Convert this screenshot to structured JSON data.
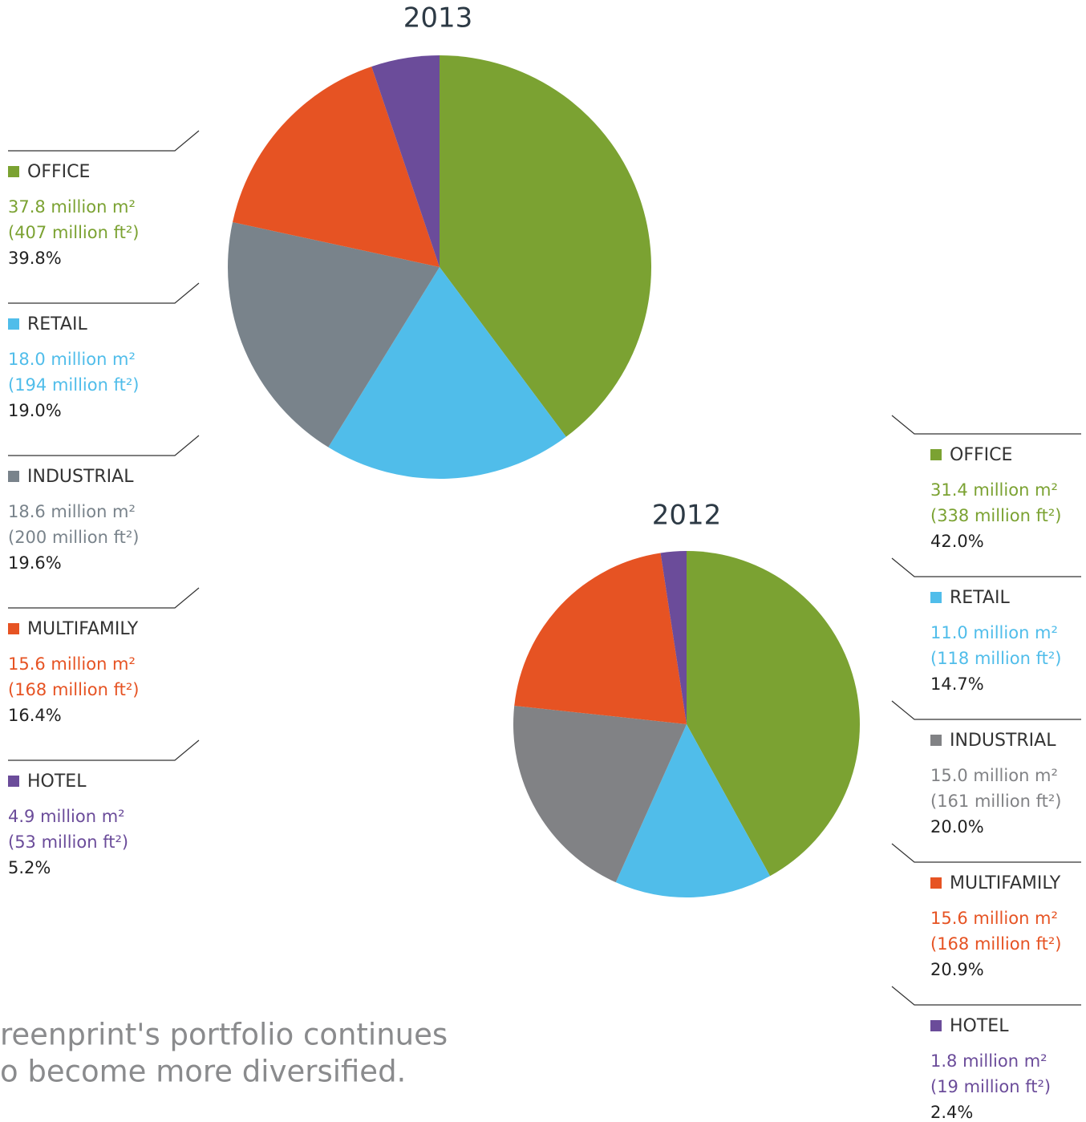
{
  "chart_data": [
    {
      "type": "pie",
      "title": "2013",
      "categories": [
        "OFFICE",
        "RETAIL",
        "INDUSTRIAL",
        "MULTIFAMILY",
        "HOTEL"
      ],
      "colors": [
        "#7ba232",
        "#50bdea",
        "#79838b",
        "#e65323",
        "#6b4c9a"
      ],
      "values": [
        39.8,
        19.0,
        19.6,
        16.4,
        5.2
      ],
      "value_labels": [
        "39.8%",
        "19.0%",
        "19.6%",
        "16.4%",
        "5.2%"
      ],
      "areas_m2": [
        "37.8 million m²",
        "18.0 million m²",
        "18.6 million m²",
        "15.6 million m²",
        "4.9 million m²"
      ],
      "areas_ft2": [
        "(407 million ft²)",
        "(194 million ft²)",
        "(200 million ft²)",
        "(168 million ft²)",
        "(53 million ft²)"
      ]
    },
    {
      "type": "pie",
      "title": "2012",
      "categories": [
        "OFFICE",
        "RETAIL",
        "INDUSTRIAL",
        "MULTIFAMILY",
        "HOTEL"
      ],
      "colors": [
        "#7ba232",
        "#50bdea",
        "#818285",
        "#e65323",
        "#6b4c9a"
      ],
      "values": [
        42.0,
        14.7,
        20.0,
        20.9,
        2.4
      ],
      "value_labels": [
        "42.0%",
        "14.7%",
        "20.0%",
        "20.9%",
        "2.4%"
      ],
      "areas_m2": [
        "31.4 million m²",
        "11.0 million m²",
        "15.0 million m²",
        "15.6 million m²",
        "1.8 million m²"
      ],
      "areas_ft2": [
        "(338 million ft²)",
        "(118 million ft²)",
        "(161 million ft²)",
        "(168 million ft²)",
        "(19 million ft²)"
      ]
    }
  ],
  "caption": [
    "reenprint's portfolio continues",
    "o become more diversified."
  ]
}
